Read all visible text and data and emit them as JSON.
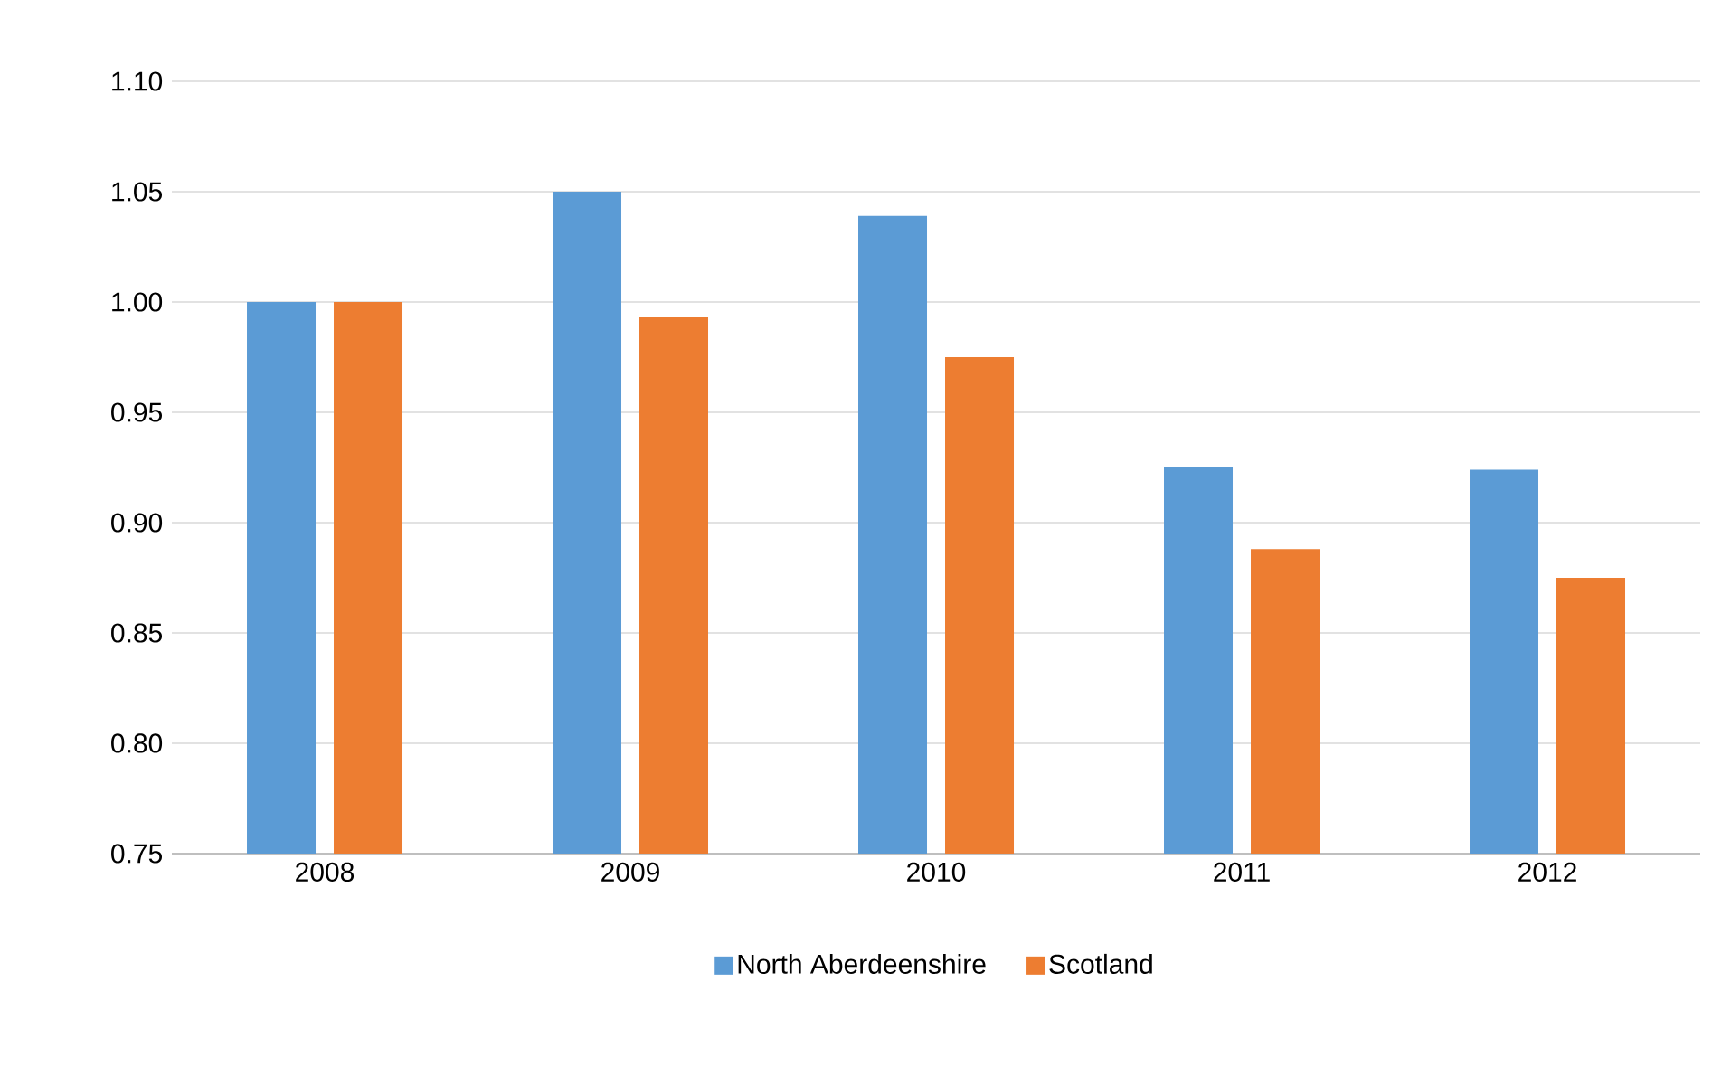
{
  "chart_data": {
    "type": "bar",
    "categories": [
      "2008",
      "2009",
      "2010",
      "2011",
      "2012"
    ],
    "series": [
      {
        "name": "North Aberdeenshire",
        "color": "#5b9bd5",
        "values": [
          1.0,
          1.05,
          1.039,
          0.925,
          0.924
        ]
      },
      {
        "name": "Scotland",
        "color": "#ed7d31",
        "values": [
          1.0,
          0.993,
          0.975,
          0.888,
          0.875
        ]
      }
    ],
    "ylim": [
      0.75,
      1.1
    ],
    "yticks": [
      {
        "value": 0.75,
        "label": "0.75"
      },
      {
        "value": 0.8,
        "label": "0.80"
      },
      {
        "value": 0.85,
        "label": "0.85"
      },
      {
        "value": 0.9,
        "label": "0.90"
      },
      {
        "value": 0.95,
        "label": "0.95"
      },
      {
        "value": 1.0,
        "label": "1.00"
      },
      {
        "value": 1.05,
        "label": "1.05"
      },
      {
        "value": 1.1,
        "label": "1.10"
      }
    ],
    "grid": "y",
    "legend": "bottom"
  }
}
